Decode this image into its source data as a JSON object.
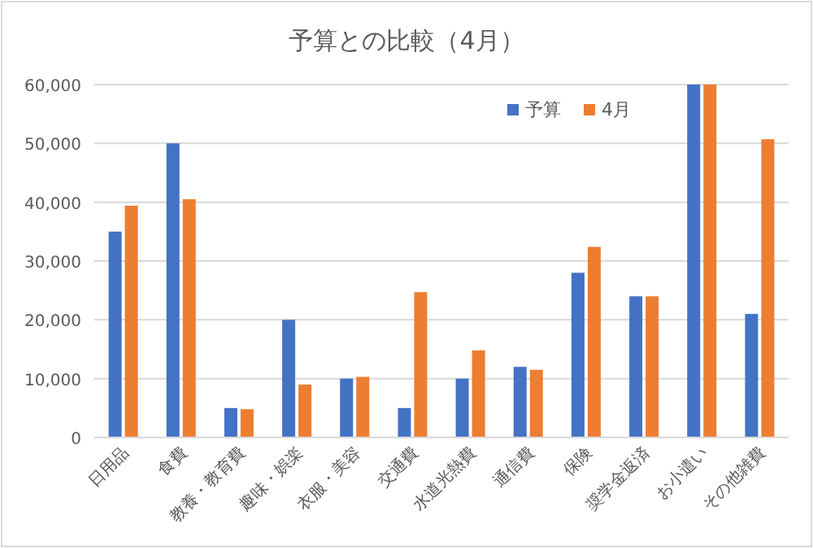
{
  "chart_data": {
    "type": "bar",
    "title": "予算との比較（4月）",
    "categories": [
      "日用品",
      "食費",
      "教養・教育費",
      "趣味・娯楽",
      "衣服・美容",
      "交通費",
      "水道光熱費",
      "通信費",
      "保険",
      "奨学金返済",
      "お小遣い",
      "その他雑費"
    ],
    "series": [
      {
        "name": "予算",
        "color": "#4472c4",
        "values": [
          35000,
          50000,
          5000,
          20000,
          10000,
          5000,
          10000,
          12000,
          28000,
          24000,
          60000,
          21000
        ]
      },
      {
        "name": "4月",
        "color": "#ed7d31",
        "values": [
          39400,
          40500,
          4800,
          9000,
          10300,
          24700,
          14800,
          11500,
          32400,
          24000,
          60000,
          50700
        ]
      }
    ],
    "ylim": [
      0,
      60000
    ],
    "yticks": [
      {
        "value": 0,
        "label": "0"
      },
      {
        "value": 10000,
        "label": "10,000"
      },
      {
        "value": 20000,
        "label": "20,000"
      },
      {
        "value": 30000,
        "label": "30,000"
      },
      {
        "value": 40000,
        "label": "40,000"
      },
      {
        "value": 50000,
        "label": "50,000"
      },
      {
        "value": 60000,
        "label": "60,000"
      }
    ],
    "grid": "y",
    "legend": "top right"
  }
}
